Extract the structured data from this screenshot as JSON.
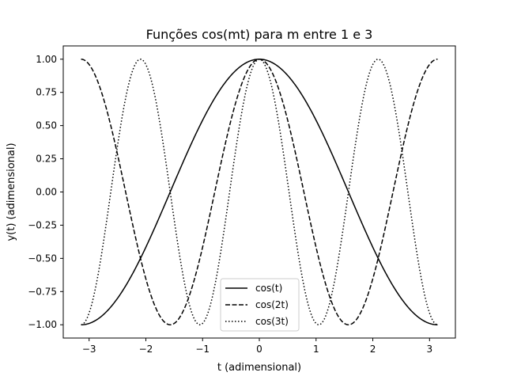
{
  "chart_data": {
    "type": "line",
    "title": "Funções cos(mt) para m entre 1 e 3",
    "xlabel": "t (adimensional)",
    "ylabel": "y(t) (adimensional)",
    "xlim": [
      -3.45575,
      3.45575
    ],
    "ylim": [
      -1.1,
      1.1
    ],
    "x_ticks": [
      -3,
      -2,
      -1,
      0,
      1,
      2,
      3
    ],
    "x_tick_labels": [
      "−3",
      "−2",
      "−1",
      "0",
      "1",
      "2",
      "3"
    ],
    "y_ticks": [
      1.0,
      0.75,
      0.5,
      0.25,
      0.0,
      -0.25,
      -0.5,
      -0.75,
      -1.0
    ],
    "y_tick_labels": [
      "1.00",
      "0.75",
      "0.50",
      "0.25",
      "0.00",
      "−0.25",
      "−0.50",
      "−0.75",
      "−1.00"
    ],
    "grid": false,
    "legend_position": "bottom-center",
    "x_domain": [
      -3.14159,
      3.14159
    ],
    "series": [
      {
        "name": "cos(t)",
        "multiplier": 1,
        "style": "solid",
        "color": "#000000"
      },
      {
        "name": "cos(2t)",
        "multiplier": 2,
        "style": "dashed",
        "color": "#000000"
      },
      {
        "name": "cos(3t)",
        "multiplier": 3,
        "style": "dotted",
        "color": "#000000"
      }
    ]
  }
}
